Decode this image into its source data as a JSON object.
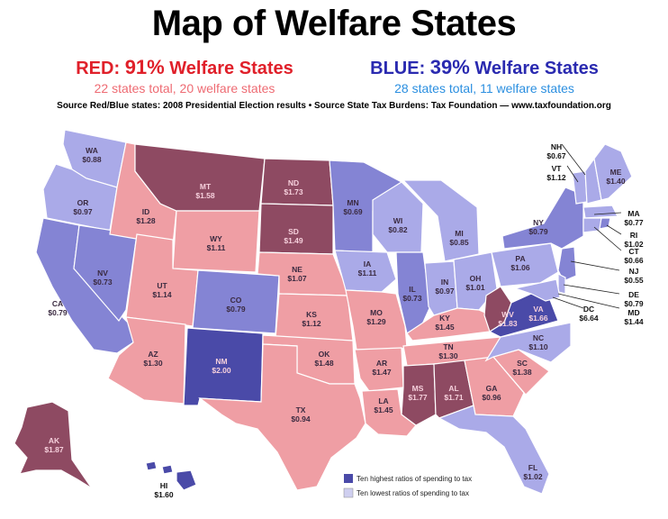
{
  "title": "Map of Welfare States",
  "red": {
    "prefix": "RED: ",
    "percent": "91%",
    "suffix": " Welfare States",
    "subtitle": "22 states total, 20 welfare states"
  },
  "blue": {
    "prefix": "BLUE: ",
    "percent": "39%",
    "suffix": " Welfare States",
    "subtitle": "28 states total, 11 welfare states"
  },
  "source": "Source Red/Blue states: 2008 Presidential Election results  •  Source State Tax Burdens: Tax Foundation — www.taxfoundation.org",
  "colors": {
    "red_light": "#ef9ea4",
    "red_dark": "#8e4a62",
    "blue_light": "#aaaae8",
    "blue_mid": "#8484d4",
    "blue_dark": "#4a4aa8"
  },
  "states": [
    {
      "abbr": "WA",
      "value": "$0.88"
    },
    {
      "abbr": "OR",
      "value": "$0.97"
    },
    {
      "abbr": "CA",
      "value": "$0.79"
    },
    {
      "abbr": "NV",
      "value": "$0.73"
    },
    {
      "abbr": "ID",
      "value": "$1.28"
    },
    {
      "abbr": "MT",
      "value": "$1.58"
    },
    {
      "abbr": "WY",
      "value": "$1.11"
    },
    {
      "abbr": "UT",
      "value": "$1.14"
    },
    {
      "abbr": "AZ",
      "value": "$1.30"
    },
    {
      "abbr": "CO",
      "value": "$0.79"
    },
    {
      "abbr": "NM",
      "value": "$2.00"
    },
    {
      "abbr": "ND",
      "value": "$1.73"
    },
    {
      "abbr": "SD",
      "value": "$1.49"
    },
    {
      "abbr": "NE",
      "value": "$1.07"
    },
    {
      "abbr": "KS",
      "value": "$1.12"
    },
    {
      "abbr": "OK",
      "value": "$1.48"
    },
    {
      "abbr": "TX",
      "value": "$0.94"
    },
    {
      "abbr": "MN",
      "value": "$0.69"
    },
    {
      "abbr": "IA",
      "value": "$1.11"
    },
    {
      "abbr": "MO",
      "value": "$1.29"
    },
    {
      "abbr": "AR",
      "value": "$1.47"
    },
    {
      "abbr": "LA",
      "value": "$1.45"
    },
    {
      "abbr": "WI",
      "value": "$0.82"
    },
    {
      "abbr": "IL",
      "value": "$0.73"
    },
    {
      "abbr": "MI",
      "value": "$0.85"
    },
    {
      "abbr": "IN",
      "value": "$0.97"
    },
    {
      "abbr": "OH",
      "value": "$1.01"
    },
    {
      "abbr": "KY",
      "value": "$1.45"
    },
    {
      "abbr": "TN",
      "value": "$1.30"
    },
    {
      "abbr": "MS",
      "value": "$1.77"
    },
    {
      "abbr": "AL",
      "value": "$1.71"
    },
    {
      "abbr": "GA",
      "value": "$0.96"
    },
    {
      "abbr": "FL",
      "value": "$1.02"
    },
    {
      "abbr": "SC",
      "value": "$1.38"
    },
    {
      "abbr": "NC",
      "value": "$1.10"
    },
    {
      "abbr": "VA",
      "value": "$1.66"
    },
    {
      "abbr": "WV",
      "value": "$1.83"
    },
    {
      "abbr": "PA",
      "value": "$1.06"
    },
    {
      "abbr": "NY",
      "value": "$0.79"
    },
    {
      "abbr": "ME",
      "value": "$1.40"
    },
    {
      "abbr": "AK",
      "value": "$1.87"
    },
    {
      "abbr": "HI",
      "value": "$1.60"
    },
    {
      "abbr": "NH",
      "value": "$0.67"
    },
    {
      "abbr": "VT",
      "value": "$1.12"
    },
    {
      "abbr": "MA",
      "value": "$0.77"
    },
    {
      "abbr": "RI",
      "value": "$1.02"
    },
    {
      "abbr": "CT",
      "value": "$0.66"
    },
    {
      "abbr": "NJ",
      "value": "$0.55"
    },
    {
      "abbr": "DE",
      "value": "$0.79"
    },
    {
      "abbr": "MD",
      "value": "$1.44"
    },
    {
      "abbr": "DC",
      "value": "$6.64"
    }
  ],
  "legend": {
    "highest": "Ten highest ratios of spending to tax",
    "lowest": "Ten lowest ratios of spending to tax"
  }
}
